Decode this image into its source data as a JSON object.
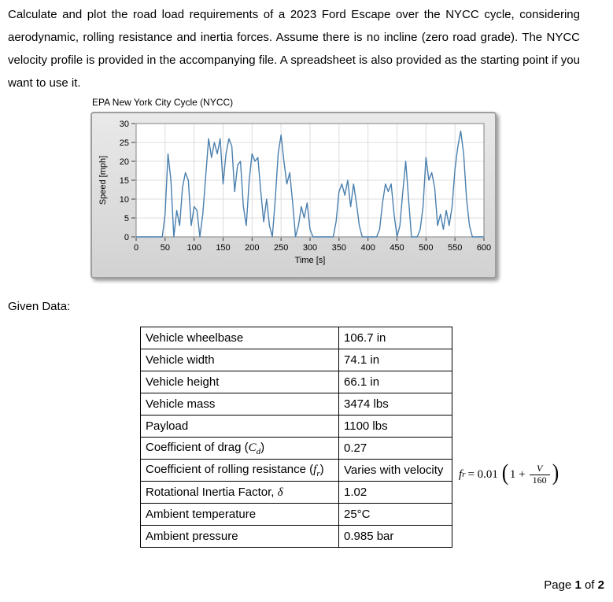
{
  "document": {
    "problem_statement": "Calculate and plot the road load requirements of a 2023 Ford Escape over the NYCC cycle, considering aerodynamic, rolling resistance and inertia forces. Assume there is no incline (zero road grade). The NYCC velocity profile is provided in the accompanying file. A spreadsheet is also provided as the starting point if you want to use it.",
    "given_data_label": "Given Data:"
  },
  "chart_data": {
    "type": "line",
    "title": "EPA New York City Cycle (NYCC)",
    "xlabel": "Time [s]",
    "ylabel": "Speed [mph]",
    "xlim": [
      0,
      600
    ],
    "ylim": [
      0,
      30
    ],
    "x_ticks": [
      0,
      50,
      100,
      150,
      200,
      250,
      300,
      350,
      400,
      450,
      500,
      550,
      600
    ],
    "y_ticks": [
      0,
      5,
      10,
      15,
      20,
      25,
      30
    ],
    "grid": true,
    "legend_position": "none",
    "line_color": "#4a7fae",
    "x": [
      0,
      5,
      10,
      15,
      20,
      25,
      30,
      35,
      40,
      45,
      50,
      55,
      60,
      65,
      70,
      75,
      80,
      85,
      90,
      95,
      100,
      105,
      110,
      115,
      120,
      125,
      130,
      135,
      140,
      145,
      150,
      155,
      160,
      165,
      170,
      175,
      180,
      185,
      190,
      195,
      200,
      205,
      210,
      215,
      220,
      225,
      230,
      235,
      240,
      245,
      250,
      255,
      260,
      265,
      270,
      275,
      280,
      285,
      290,
      295,
      300,
      305,
      310,
      315,
      320,
      325,
      330,
      335,
      340,
      345,
      350,
      355,
      360,
      365,
      370,
      375,
      380,
      385,
      390,
      395,
      400,
      405,
      410,
      415,
      420,
      425,
      430,
      435,
      440,
      445,
      450,
      455,
      460,
      465,
      470,
      475,
      480,
      485,
      490,
      495,
      500,
      505,
      510,
      515,
      520,
      525,
      530,
      535,
      540,
      545,
      550,
      555,
      560,
      565,
      570,
      575,
      580,
      585,
      590,
      595,
      600
    ],
    "y": [
      0,
      0,
      0,
      0,
      0,
      0,
      0,
      0,
      0,
      0,
      6,
      22,
      15,
      0,
      7,
      3,
      13,
      17,
      15,
      3,
      8,
      7,
      0,
      6,
      16,
      26,
      21,
      25,
      22,
      26,
      14,
      22,
      26,
      24,
      12,
      19,
      20,
      8,
      3,
      15,
      22,
      20,
      21,
      12,
      4,
      10,
      3,
      0,
      10,
      22,
      27,
      20,
      14,
      17,
      9,
      0,
      3,
      8,
      5,
      9,
      2,
      0,
      0,
      0,
      0,
      0,
      0,
      0,
      0,
      4,
      12,
      14,
      11,
      15,
      8,
      14,
      9,
      3,
      0,
      0,
      0,
      0,
      0,
      0,
      2,
      9,
      14,
      12,
      14,
      6,
      0,
      3,
      12,
      20,
      10,
      0,
      0,
      0,
      2,
      8,
      21,
      15,
      17,
      13,
      3,
      6,
      2,
      7,
      3,
      8,
      18,
      24,
      28,
      22,
      10,
      3,
      0,
      0,
      0,
      0,
      0
    ]
  },
  "table": {
    "rows": [
      {
        "label": "Vehicle wheelbase",
        "sym": "",
        "sub": "",
        "suffix": "",
        "value": "106.7 in"
      },
      {
        "label": "Vehicle width",
        "sym": "",
        "sub": "",
        "suffix": "",
        "value": "74.1 in"
      },
      {
        "label": "Vehicle height",
        "sym": "",
        "sub": "",
        "suffix": "",
        "value": "66.1 in"
      },
      {
        "label": "Vehicle mass",
        "sym": "",
        "sub": "",
        "suffix": "",
        "value": "3474 lbs"
      },
      {
        "label": "Payload",
        "sym": "",
        "sub": "",
        "suffix": "",
        "value": "1100 lbs"
      },
      {
        "label": "Coefficient of drag (",
        "sym": "C",
        "sub": "d",
        "suffix": ")",
        "value": "0.27"
      },
      {
        "label": "Coefficient of rolling resistance (",
        "sym": "f",
        "sub": "r",
        "suffix": ")",
        "value": "Varies with velocity"
      },
      {
        "label": "Rotational Inertia Factor, ",
        "sym": "δ",
        "sub": "",
        "suffix": "",
        "value": "1.02"
      },
      {
        "label": "Ambient temperature",
        "sym": "",
        "sub": "",
        "suffix": "",
        "value": "25°C"
      },
      {
        "label": "Ambient pressure",
        "sym": "",
        "sub": "",
        "suffix": "",
        "value": "0.985 bar"
      }
    ]
  },
  "formula": {
    "lhs": "f",
    "lhs_sub": "r",
    "equals": "= 0.01",
    "open_paren": "(",
    "inner": "1 +",
    "numerator": "V",
    "denominator": "160",
    "close_paren": ")"
  },
  "footer": {
    "prefix": "Page",
    "page_number": "1",
    "middle": "of",
    "total": "2"
  }
}
